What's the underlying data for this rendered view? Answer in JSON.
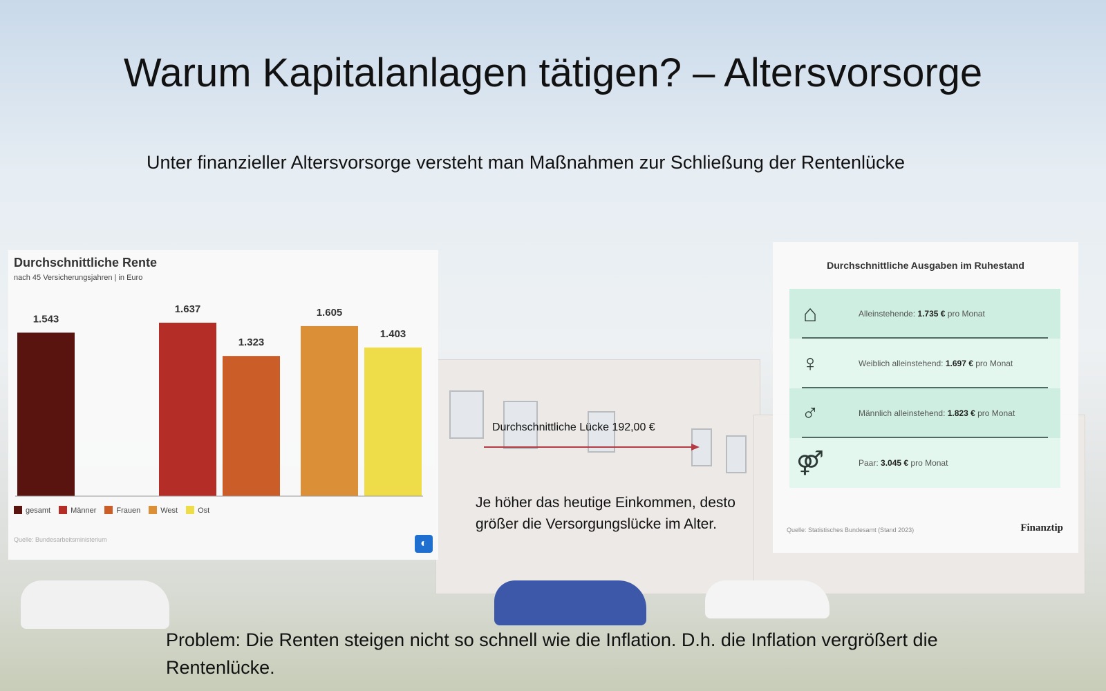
{
  "slide": {
    "title": "Warum Kapitalanlagen tätigen? – Altersvorsorge",
    "subtitle": "Unter finanzieller Altersvorsorge versteht man Maßnahmen zur Schließung der Rentenlücke",
    "gap_label": "Durchschnittliche Lücke 192,00 €",
    "note": "Je höher das heutige Einkommen, desto größer die Versorgungslücke im Alter.",
    "problem": "Problem: Die Renten steigen nicht so schnell wie die Inflation. D.h. die Inflation vergrößert die Rentenlücke."
  },
  "chart_data": {
    "type": "bar",
    "title": "Durchschnittliche Rente",
    "subtitle": "nach 45 Versicherungsjahren | in Euro",
    "categories": [
      "gesamt",
      "Männer",
      "Frauen",
      "West",
      "Ost"
    ],
    "values": [
      1543,
      1637,
      1323,
      1605,
      1403
    ],
    "value_labels": [
      "1.543",
      "1.637",
      "1.323",
      "1.605",
      "1.403"
    ],
    "colors": [
      "#5a1410",
      "#b52d27",
      "#cb5d28",
      "#db8f36",
      "#eedc48"
    ],
    "ylim": [
      0,
      1637
    ],
    "grid": false,
    "legend": "bottom-left",
    "source": "Quelle: Bundesarbeitsministerium",
    "logo_icon": "tagesschau-logo-icon"
  },
  "expenses": {
    "title": "Durchschnittliche Ausgaben im Ruhestand",
    "rows": [
      {
        "icon": "house-person-icon",
        "label": "Alleinstehende: ",
        "value": "1.735 €",
        "suffix": " pro Monat"
      },
      {
        "icon": "woman-icon",
        "label": "Weiblich alleinstehend: ",
        "value": "1.697 €",
        "suffix": " pro Monat"
      },
      {
        "icon": "man-icon",
        "label": "Männlich alleinstehend: ",
        "value": "1.823 €",
        "suffix": " pro Monat"
      },
      {
        "icon": "couple-icon",
        "label": "Paar: ",
        "value": "3.045 €",
        "suffix": " pro Monat"
      }
    ],
    "row_colors": [
      "#cdeee0",
      "#e3f7ee"
    ],
    "source": "Quelle: Statistisches Bundesamt (Stand 2023)",
    "brand": "Finanztip"
  }
}
